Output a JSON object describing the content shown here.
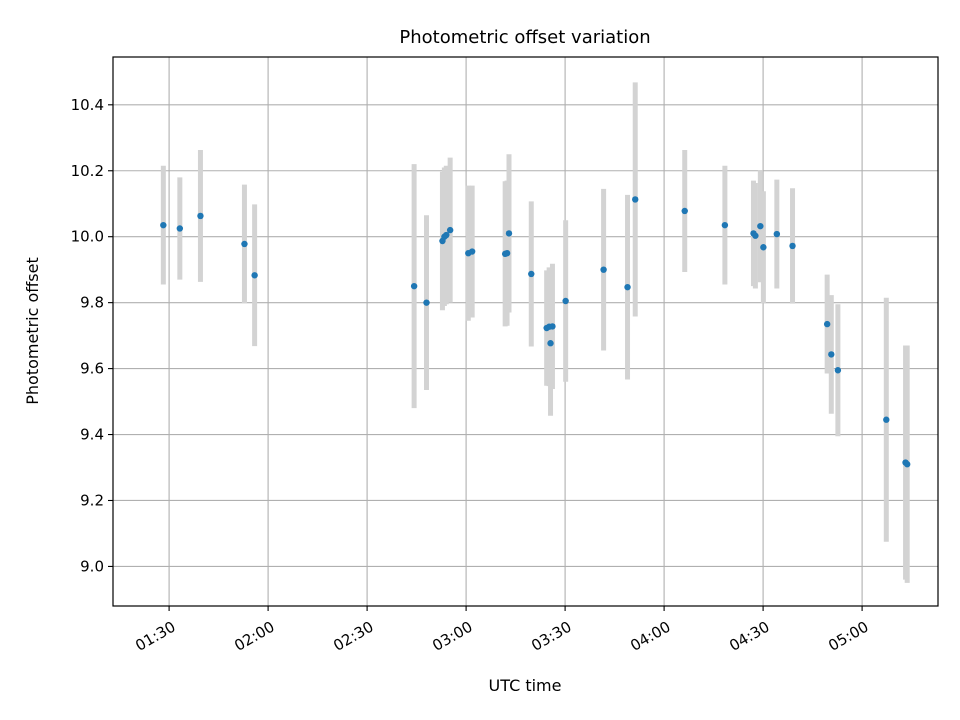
{
  "chart_data": {
    "type": "scatter",
    "title": "Photometric offset variation",
    "xlabel": "UTC time",
    "ylabel": "Photometric offset",
    "xlim": [
      "01:13",
      "05:23"
    ],
    "ylim": [
      8.88,
      10.545
    ],
    "grid": true,
    "x_ticks": [
      "01:30",
      "02:00",
      "02:30",
      "03:00",
      "03:30",
      "04:00",
      "04:30",
      "05:00"
    ],
    "y_ticks": [
      9.0,
      9.2,
      9.4,
      9.6,
      9.8,
      10.0,
      10.2,
      10.4
    ],
    "colors": {
      "point": "#1f77b4",
      "errorbar": "#d3d3d3",
      "grid": "#b0b0b0"
    },
    "points": [
      {
        "x": "01:28:15",
        "y": 10.035,
        "err": 0.18
      },
      {
        "x": "01:33:15",
        "y": 10.025,
        "err": 0.155
      },
      {
        "x": "01:39:30",
        "y": 10.063,
        "err": 0.2
      },
      {
        "x": "01:52:50",
        "y": 9.978,
        "err": 0.18
      },
      {
        "x": "01:55:55",
        "y": 9.883,
        "err": 0.215
      },
      {
        "x": "02:44:15",
        "y": 9.85,
        "err": 0.37
      },
      {
        "x": "02:48:00",
        "y": 9.8,
        "err": 0.265
      },
      {
        "x": "02:52:50",
        "y": 9.987,
        "err": 0.21
      },
      {
        "x": "02:53:25",
        "y": 10.0,
        "err": 0.21
      },
      {
        "x": "02:54:00",
        "y": 10.005,
        "err": 0.21
      },
      {
        "x": "02:55:10",
        "y": 10.02,
        "err": 0.22
      },
      {
        "x": "03:00:40",
        "y": 9.95,
        "err": 0.205
      },
      {
        "x": "03:01:50",
        "y": 9.955,
        "err": 0.2
      },
      {
        "x": "03:11:50",
        "y": 9.948,
        "err": 0.22
      },
      {
        "x": "03:12:25",
        "y": 9.95,
        "err": 0.22
      },
      {
        "x": "03:13:00",
        "y": 10.01,
        "err": 0.24
      },
      {
        "x": "03:19:45",
        "y": 9.887,
        "err": 0.22
      },
      {
        "x": "03:24:25",
        "y": 9.723,
        "err": 0.175
      },
      {
        "x": "03:25:10",
        "y": 9.727,
        "err": 0.18
      },
      {
        "x": "03:25:35",
        "y": 9.677,
        "err": 0.22
      },
      {
        "x": "03:26:10",
        "y": 9.728,
        "err": 0.19
      },
      {
        "x": "03:30:10",
        "y": 9.805,
        "err": 0.245
      },
      {
        "x": "03:41:40",
        "y": 9.9,
        "err": 0.245
      },
      {
        "x": "03:48:55",
        "y": 9.847,
        "err": 0.28
      },
      {
        "x": "03:51:15",
        "y": 10.113,
        "err": 0.355
      },
      {
        "x": "04:06:15",
        "y": 10.078,
        "err": 0.185
      },
      {
        "x": "04:18:25",
        "y": 10.035,
        "err": 0.18
      },
      {
        "x": "04:27:05",
        "y": 10.01,
        "err": 0.16
      },
      {
        "x": "04:27:40",
        "y": 10.003,
        "err": 0.16
      },
      {
        "x": "04:29:10",
        "y": 10.032,
        "err": 0.17
      },
      {
        "x": "04:30:05",
        "y": 9.968,
        "err": 0.17
      },
      {
        "x": "04:34:10",
        "y": 10.008,
        "err": 0.165
      },
      {
        "x": "04:38:55",
        "y": 9.972,
        "err": 0.175
      },
      {
        "x": "04:49:25",
        "y": 9.735,
        "err": 0.15
      },
      {
        "x": "04:50:40",
        "y": 9.643,
        "err": 0.18
      },
      {
        "x": "04:52:40",
        "y": 9.595,
        "err": 0.2
      },
      {
        "x": "05:07:20",
        "y": 9.445,
        "err": 0.37
      },
      {
        "x": "05:13:10",
        "y": 9.315,
        "err": 0.355
      },
      {
        "x": "05:13:40",
        "y": 9.31,
        "err": 0.36
      }
    ]
  }
}
